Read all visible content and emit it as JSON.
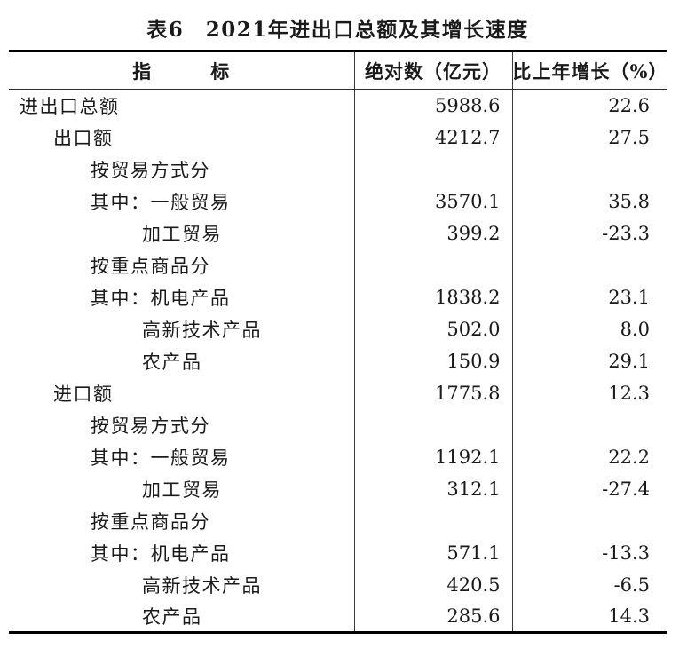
{
  "title": "表6　2021年进出口总额及其增长速度",
  "table": {
    "columns": [
      "指　　　标",
      "绝对数（亿元）",
      "比上年增长（%）"
    ],
    "rows": [
      {
        "label": "进出口总额",
        "indent": 0,
        "absolute": "5988.6",
        "growth": "22.6"
      },
      {
        "label": "出口额",
        "indent": 1,
        "absolute": "4212.7",
        "growth": "27.5"
      },
      {
        "label": "按贸易方式分",
        "indent": 2,
        "absolute": "",
        "growth": ""
      },
      {
        "label": "其中：一般贸易",
        "indent": 2,
        "absolute": "3570.1",
        "growth": "35.8"
      },
      {
        "label": "加工贸易",
        "indent": 3,
        "absolute": "399.2",
        "growth": "-23.3"
      },
      {
        "label": "按重点商品分",
        "indent": 2,
        "absolute": "",
        "growth": ""
      },
      {
        "label": "其中：机电产品",
        "indent": 2,
        "absolute": "1838.2",
        "growth": "23.1"
      },
      {
        "label": "高新技术产品",
        "indent": 3,
        "absolute": "502.0",
        "growth": "8.0"
      },
      {
        "label": "农产品",
        "indent": 3,
        "absolute": "150.9",
        "growth": "29.1"
      },
      {
        "label": "进口额",
        "indent": 1,
        "absolute": "1775.8",
        "growth": "12.3"
      },
      {
        "label": "按贸易方式分",
        "indent": 2,
        "absolute": "",
        "growth": ""
      },
      {
        "label": "其中：一般贸易",
        "indent": 2,
        "absolute": "1192.1",
        "growth": "22.2"
      },
      {
        "label": "加工贸易",
        "indent": 3,
        "absolute": "312.1",
        "growth": "-27.4"
      },
      {
        "label": "按重点商品分",
        "indent": 2,
        "absolute": "",
        "growth": ""
      },
      {
        "label": "其中：机电产品",
        "indent": 2,
        "absolute": "571.1",
        "growth": "-13.3"
      },
      {
        "label": "高新技术产品",
        "indent": 3,
        "absolute": "420.5",
        "growth": "-6.5"
      },
      {
        "label": "农产品",
        "indent": 3,
        "absolute": "285.6",
        "growth": "14.3"
      }
    ]
  }
}
